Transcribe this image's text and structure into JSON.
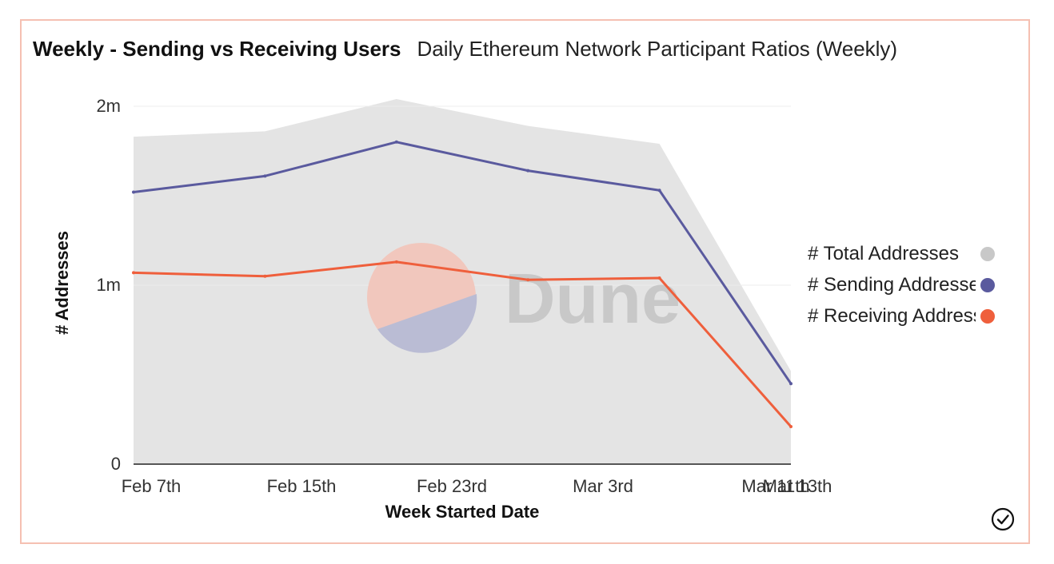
{
  "header": {
    "title": "Weekly - Sending vs Receiving Users",
    "subtitle": "Daily Ethereum Network Participant Ratios (Weekly)"
  },
  "watermark": {
    "text": "Dune",
    "colors": [
      "#f1c7bd",
      "#babcd4",
      "#c8c8c8"
    ]
  },
  "chart_data": {
    "type": "line",
    "xlabel": "Week Started Date",
    "ylabel": "# Addresses",
    "x": [
      "2022-02-07",
      "2022-02-14",
      "2022-02-21",
      "2022-02-28",
      "2022-03-07",
      "2022-03-14"
    ],
    "x_tick_labels": [
      "Feb 7th",
      "Feb 15th",
      "Feb 23rd",
      "Mar 3rd",
      "Mar 11th",
      "Mar 13th"
    ],
    "ylim": [
      0,
      2000000
    ],
    "y_ticks": [
      {
        "value": 0,
        "label": "0"
      },
      {
        "value": 1000000,
        "label": "1m"
      },
      {
        "value": 2000000,
        "label": "2m"
      }
    ],
    "grid": true,
    "legend_position": "right",
    "series": [
      {
        "name": "# Total Addresses",
        "kind": "area",
        "color": "#e4e4e4",
        "legend_color": "#c8c8c8",
        "values": [
          1830000,
          1860000,
          2040000,
          1890000,
          1790000,
          520000
        ]
      },
      {
        "name": "# Sending Addresses",
        "kind": "line",
        "color": "#5a5a9e",
        "values": [
          1520000,
          1610000,
          1800000,
          1640000,
          1530000,
          450000
        ]
      },
      {
        "name": "# Receiving Addresses",
        "kind": "line",
        "color": "#ef5f3c",
        "values": [
          1070000,
          1050000,
          1130000,
          1030000,
          1040000,
          210000
        ]
      }
    ]
  }
}
